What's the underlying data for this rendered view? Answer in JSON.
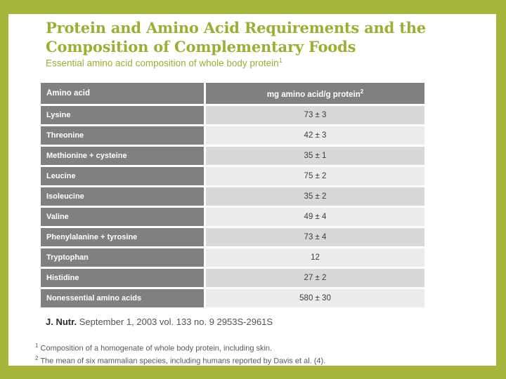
{
  "slide": {
    "title": "Protein and Amino Acid Requirements and the\nComposition of Complementary Foods",
    "subtitle": "Essential amino acid composition of whole body protein",
    "subtitle_footnote_marker": "1"
  },
  "table": {
    "headers": {
      "amino_acid": "Amino acid",
      "value": "mg amino acid/g protein",
      "value_footnote_marker": "2"
    },
    "rows": [
      {
        "label": "Lysine",
        "value": "73 ± 3"
      },
      {
        "label": "Threonine",
        "value": "42 ± 3"
      },
      {
        "label": "Methionine + cysteine",
        "value": "35 ± 1"
      },
      {
        "label": "Leucine",
        "value": "75 ± 2"
      },
      {
        "label": "Isoleucine",
        "value": "35 ± 2"
      },
      {
        "label": "Valine",
        "value": "49 ± 4"
      },
      {
        "label": "Phenylalanine + tyrosine",
        "value": "73 ± 4"
      },
      {
        "label": "Tryptophan",
        "value": "12"
      },
      {
        "label": "Histidine",
        "value": "27 ± 2"
      },
      {
        "label": "Nonessential amino acids",
        "value": "580 ± 30"
      }
    ]
  },
  "citation": {
    "journal": "J. Nutr.",
    "reference": "September 1, 2003 vol. 133 no. 9 2953S-2961S"
  },
  "footnotes": [
    {
      "marker": "1",
      "text": "Composition of a homogenate of whole body protein, including skin."
    },
    {
      "marker": "2",
      "text": "The mean of six mammalian species, including humans reported by Davis et al. (4)."
    }
  ],
  "colors": {
    "frame_green": "#a7b63a",
    "title_green": "#9cae34",
    "header_gray": "#808080",
    "label_cell_gray": "#808080",
    "value_cell_dark": "#d8d8d8",
    "value_cell_light": "#ececec",
    "value_text": "#3d3d3d",
    "citation_text": "#54564c",
    "footnote_text": "#595959"
  }
}
